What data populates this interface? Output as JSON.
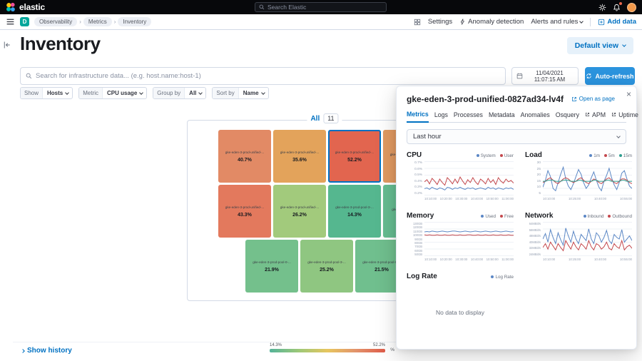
{
  "colors": {
    "primary": "#0071c2",
    "refresh_button": "#2b93dd"
  },
  "topbar": {
    "brand": "elastic",
    "search_placeholder": "Search Elastic"
  },
  "navbar": {
    "deployment_badge": "D",
    "breadcrumbs": [
      "Observability",
      "Metrics",
      "Inventory"
    ],
    "settings": "Settings",
    "anomaly_detection": "Anomaly detection",
    "alerts_and_rules": "Alerts and rules",
    "add_data": "Add data"
  },
  "page": {
    "title": "Inventory",
    "view_button": "Default view"
  },
  "toolbar": {
    "search_placeholder": "Search for infrastructure data... (e.g. host.name:host-1)",
    "datetime": "11/04/2021 11:07:15 AM",
    "auto_refresh": "Auto-refresh"
  },
  "filters": {
    "show": {
      "label": "Show",
      "value": "Hosts"
    },
    "metric": {
      "label": "Metric",
      "value": "CPU usage"
    },
    "group_by": {
      "label": "Group by",
      "value": "All"
    },
    "sort_by": {
      "label": "Sort by",
      "value": "Name"
    }
  },
  "map": {
    "group_label": "All",
    "group_count": "11",
    "tiles": [
      {
        "name": "gke-eden-3-prod-unified-...",
        "value": "40.7%",
        "color": "#e28a65"
      },
      {
        "name": "gke-eden-3-prod-unified-...",
        "value": "35.6%",
        "color": "#e3a35b"
      },
      {
        "name": "gke-eden-3-prod-unified-...",
        "value": "52.2%",
        "color": "#e2654f"
      },
      {
        "name": "gke-eden-3-prod-unified-...",
        "value": "",
        "color": "#e19a62"
      },
      {
        "name": "gke-eden-3-prod-unified-...",
        "value": "43.3%",
        "color": "#e3795d"
      },
      {
        "name": "gke-eden-3-prod-unified-...",
        "value": "26.2%",
        "color": "#a2ca7c"
      },
      {
        "name": "gke-eden-3-prod-pool-3-...",
        "value": "14.3%",
        "color": "#55b78f"
      },
      {
        "name": "gke-eden-3-prod-pool-...",
        "value": "",
        "color": "#66bd91"
      },
      {
        "name": "gke-eden-3-prod-pool-0-...",
        "value": "21.9%",
        "color": "#74c08c"
      },
      {
        "name": "gke-eden-3-prod-pool-3-...",
        "value": "25.2%",
        "color": "#8fc681"
      },
      {
        "name": "gke-eden-3-prod-pool-0-...",
        "value": "21.5%",
        "color": "#70bf8e"
      }
    ],
    "legend": {
      "min_label": "14.3%",
      "max_label": "52.2%",
      "unit": "%",
      "gradient": [
        "#54b399",
        "#9cc878",
        "#e7c65f",
        "#e2926b",
        "#df5b49"
      ]
    }
  },
  "show_history": "Show history",
  "flyout": {
    "title": "gke-eden-3-prod-unified-0827ad34-lv4f",
    "open_as_page": "Open as page",
    "close_label": "×",
    "tabs": [
      "Metrics",
      "Logs",
      "Processes",
      "Metadata",
      "Anomalies",
      "Osquery"
    ],
    "external_tabs": [
      "APM",
      "Uptime"
    ],
    "time_range": "Last hour",
    "no_data": "No data to display",
    "charts": {
      "cpu": {
        "title": "CPU",
        "type": "line",
        "min": 0.2,
        "max": 0.7,
        "y_ticks": [
          "0.7%",
          "0.6%",
          "0.5%",
          "0.4%",
          "0.3%",
          "0.2%"
        ],
        "x_ticks": [
          "10:10:00",
          "10:20:00",
          "10:30:00",
          "10:40:00",
          "10:50:00",
          "11:00:00"
        ],
        "series": [
          {
            "name": "System",
            "color": "#5b87c5",
            "values": [
              0.3,
              0.31,
              0.29,
              0.32,
              0.3,
              0.29,
              0.31,
              0.3,
              0.28,
              0.32,
              0.31,
              0.29,
              0.31,
              0.3,
              0.32,
              0.3,
              0.29,
              0.31,
              0.3,
              0.31,
              0.29,
              0.3,
              0.31,
              0.3,
              0.29,
              0.32,
              0.3,
              0.31,
              0.29,
              0.31,
              0.3,
              0.29,
              0.31,
              0.3,
              0.31,
              0.29
            ]
          },
          {
            "name": "User",
            "color": "#c4484d",
            "values": [
              0.4,
              0.43,
              0.37,
              0.45,
              0.41,
              0.36,
              0.44,
              0.39,
              0.35,
              0.46,
              0.42,
              0.37,
              0.44,
              0.38,
              0.47,
              0.41,
              0.36,
              0.43,
              0.39,
              0.46,
              0.4,
              0.36,
              0.44,
              0.41,
              0.37,
              0.45,
              0.39,
              0.43,
              0.36,
              0.46,
              0.41,
              0.38,
              0.44,
              0.4,
              0.42,
              0.38
            ]
          }
        ]
      },
      "load": {
        "title": "Load",
        "type": "line",
        "min": 3,
        "max": 32,
        "y_ticks": [
          "30",
          "25",
          "20",
          "15",
          "10",
          "5"
        ],
        "x_ticks": [
          "10:10:00",
          "10:25:00",
          "10:40:00",
          "10:55:00"
        ],
        "series": [
          {
            "name": "1m",
            "color": "#5b87c5",
            "values": [
              10,
              16,
              24,
              19,
              9,
              7,
              14,
              21,
              27,
              17,
              11,
              8,
              13,
              19,
              25,
              21,
              14,
              9,
              12,
              18,
              23,
              16,
              10,
              7,
              15,
              20,
              26,
              18,
              12,
              8,
              14,
              22,
              24,
              17,
              11,
              9
            ]
          },
          {
            "name": "5m",
            "color": "#c4484d",
            "values": [
              14,
              15,
              17,
              18,
              16,
              14,
              13,
              15,
              17,
              18,
              17,
              15,
              14,
              15,
              17,
              18,
              16,
              14,
              13,
              15,
              17,
              16,
              14,
              13,
              15,
              17,
              18,
              16,
              14,
              13,
              15,
              17,
              17,
              16,
              14,
              13
            ]
          },
          {
            "name": "15m",
            "color": "#2f9e8f",
            "values": [
              15,
              15,
              16,
              16,
              16,
              15,
              15,
              15,
              16,
              16,
              16,
              15,
              15,
              15,
              16,
              16,
              15,
              15,
              15,
              15,
              16,
              16,
              15,
              15,
              15,
              16,
              16,
              15,
              15,
              15,
              15,
              16,
              16,
              15,
              15,
              15
            ]
          }
        ]
      },
      "memory": {
        "title": "Memory",
        "type": "line",
        "min": 50,
        "max": 132,
        "y_ticks": [
          "130GB",
          "120GB",
          "110GB",
          "100GB",
          "90GB",
          "80GB",
          "70GB",
          "60GB",
          "50GB"
        ],
        "x_ticks": [
          "10:10:00",
          "10:20:00",
          "10:30:00",
          "10:40:00",
          "10:50:00",
          "11:00:00"
        ],
        "series": [
          {
            "name": "Used",
            "color": "#5b87c5",
            "values": [
              108,
              109,
              108,
              110,
              109,
              108,
              109,
              110,
              109,
              108,
              109,
              110,
              110,
              109,
              108,
              109,
              110,
              109,
              108,
              109,
              110,
              109,
              108,
              109,
              110,
              109,
              108,
              109,
              110,
              109,
              108,
              109,
              110,
              109,
              108,
              109
            ]
          },
          {
            "name": "Free",
            "color": "#c4484d",
            "values": [
              101,
              100,
              101,
              100,
              100,
              101,
              100,
              100,
              101,
              100,
              100,
              101,
              100,
              100,
              101,
              100,
              100,
              101,
              101,
              100,
              100,
              101,
              100,
              100,
              101,
              100,
              100,
              101,
              100,
              100,
              101,
              100,
              100,
              101,
              100,
              100
            ]
          }
        ]
      },
      "network": {
        "title": "Network",
        "type": "line",
        "min": 22,
        "max": 66,
        "y_ticks": [
          "64MBit/s",
          "56MBit/s",
          "48MBit/s",
          "40MBit/s",
          "32MBit/s",
          "24MBit/s"
        ],
        "x_ticks": [
          "10:10:00",
          "10:25:00",
          "10:40:00",
          "10:55:00"
        ],
        "series": [
          {
            "name": "Inbound",
            "color": "#5b87c5",
            "values": [
              44,
              51,
              40,
              56,
              46,
              38,
              52,
              43,
              36,
              58,
              48,
              40,
              54,
              44,
              38,
              50,
              46,
              42,
              57,
              44,
              38,
              52,
              48,
              40,
              46,
              55,
              42,
              38,
              50,
              46,
              44,
              56,
              40,
              44,
              48,
              42
            ]
          },
          {
            "name": "Outbound",
            "color": "#c4484d",
            "values": [
              33,
              38,
              31,
              40,
              35,
              30,
              38,
              33,
              29,
              42,
              36,
              31,
              40,
              34,
              30,
              38,
              35,
              31,
              42,
              34,
              30,
              38,
              36,
              31,
              34,
              40,
              32,
              30,
              38,
              34,
              32,
              42,
              30,
              34,
              36,
              32
            ]
          }
        ]
      },
      "log_rate": {
        "title": "Log Rate",
        "type": "line",
        "series": [
          {
            "name": "Log Rate",
            "color": "#5b87c5",
            "values": []
          }
        ]
      }
    }
  }
}
